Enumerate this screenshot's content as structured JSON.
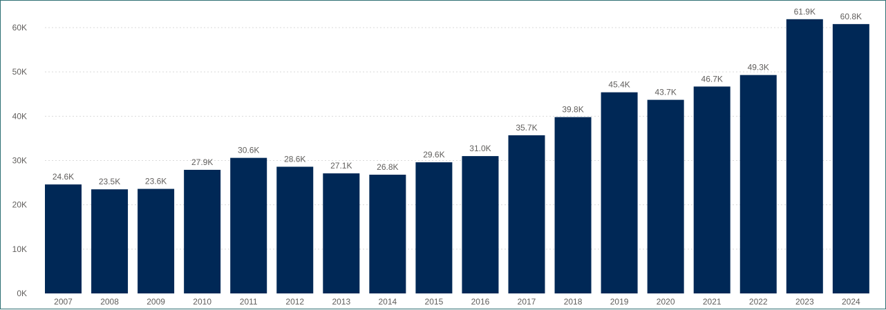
{
  "chart_data": {
    "type": "bar",
    "title": "",
    "xlabel": "",
    "ylabel": "",
    "categories": [
      "2007",
      "2008",
      "2009",
      "2010",
      "2011",
      "2012",
      "2013",
      "2014",
      "2015",
      "2016",
      "2017",
      "2018",
      "2019",
      "2020",
      "2021",
      "2022",
      "2023",
      "2024"
    ],
    "values": [
      24.6,
      23.5,
      23.6,
      27.9,
      30.6,
      28.6,
      27.1,
      26.8,
      29.6,
      31.0,
      35.7,
      39.8,
      45.4,
      43.7,
      46.7,
      49.3,
      61.9,
      60.8
    ],
    "value_unit": "K",
    "data_labels": [
      "24.6K",
      "23.5K",
      "23.6K",
      "27.9K",
      "30.6K",
      "28.6K",
      "27.1K",
      "26.8K",
      "29.6K",
      "31.0K",
      "35.7K",
      "39.8K",
      "45.4K",
      "43.7K",
      "46.7K",
      "49.3K",
      "61.9K",
      "60.8K"
    ],
    "yticks": [
      "0K",
      "10K",
      "20K",
      "30K",
      "40K",
      "50K",
      "60K"
    ],
    "ylim": [
      0,
      60
    ],
    "grid": true,
    "bar_color": "#002856",
    "grid_color": "#d9d9d9",
    "frame_color": "#2e6f73"
  }
}
